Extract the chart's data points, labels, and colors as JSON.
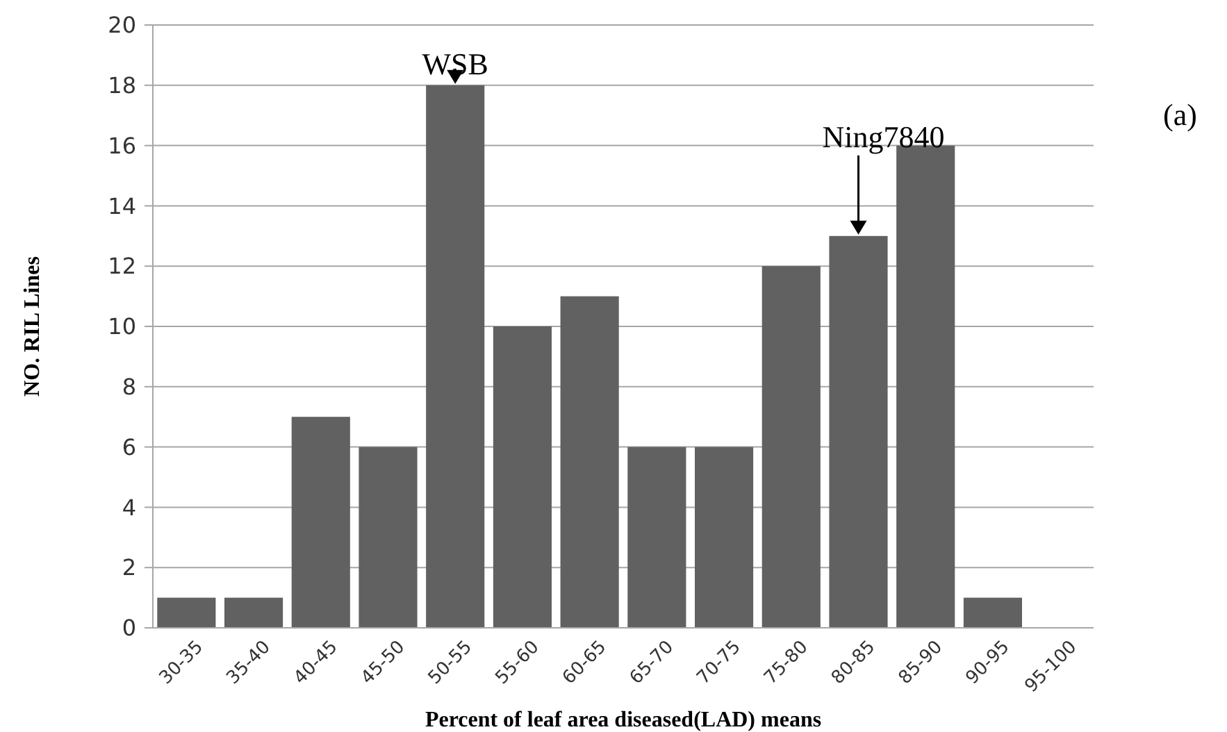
{
  "chart_data": {
    "type": "bar",
    "xlabel": "Percent of leaf area diseased(LAD) means",
    "ylabel": "NO. RIL Lines",
    "categories": [
      "30-35",
      "35-40",
      "40-45",
      "45-50",
      "50-55",
      "55-60",
      "60-65",
      "65-70",
      "70-75",
      "75-80",
      "80-85",
      "85-90",
      "90-95",
      "95-100"
    ],
    "values": [
      1,
      1,
      7,
      6,
      18,
      10,
      11,
      6,
      6,
      12,
      13,
      16,
      1,
      0
    ],
    "color": "#616161",
    "ylim": [
      0,
      20
    ],
    "yticks": [
      0,
      2,
      4,
      6,
      8,
      10,
      12,
      14,
      16,
      18,
      20
    ],
    "grid": "y",
    "annotations": [
      {
        "text": "WSB",
        "x": "50-55",
        "y": 18
      },
      {
        "text": "Ning7840",
        "x": "80-85",
        "y": 13
      },
      "(a)"
    ]
  }
}
